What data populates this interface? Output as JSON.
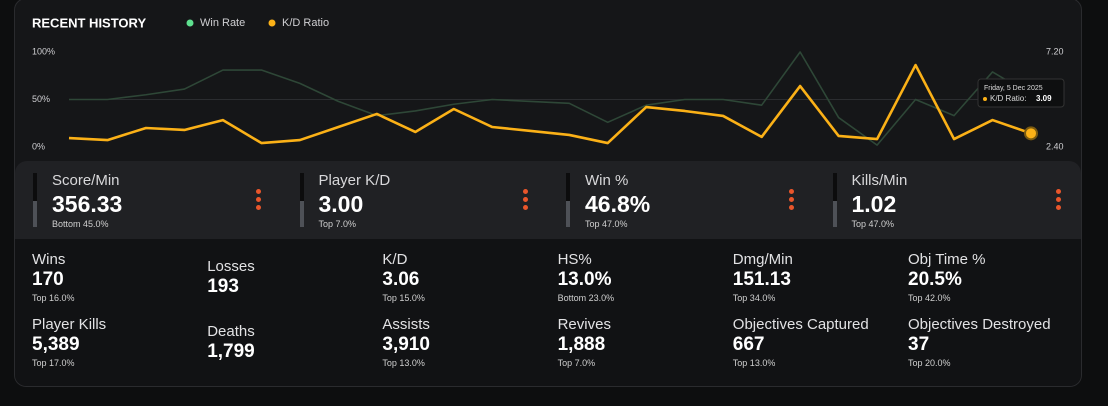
{
  "chart_data": {
    "type": "line",
    "title": "RECENT HISTORY",
    "categories": [
      null,
      null,
      null,
      null,
      null,
      null,
      null,
      null,
      null,
      null,
      null,
      null,
      null,
      null,
      null,
      null,
      null,
      null,
      null,
      null,
      null,
      null,
      null,
      null,
      null,
      null
    ],
    "series": [
      {
        "name": "Win Rate",
        "color": "#5ee08f",
        "line_color": "#2e4737",
        "axis": "y",
        "values": [
          50,
          50,
          55,
          61,
          81,
          81,
          67,
          48,
          33,
          38,
          45,
          50,
          48,
          46,
          26,
          44,
          50,
          50,
          44,
          100,
          31,
          2,
          50,
          33,
          79,
          55
        ]
      },
      {
        "name": "K/D Ratio",
        "color": "#fbb117",
        "line_color": "#fbb117",
        "axis": "y2",
        "values": [
          2.85,
          2.75,
          3.36,
          3.26,
          3.76,
          2.6,
          2.75,
          3.41,
          4.07,
          3.16,
          4.32,
          3.41,
          3.21,
          3.01,
          2.6,
          4.42,
          4.22,
          3.97,
          2.91,
          5.48,
          2.96,
          2.8,
          6.54,
          2.8,
          3.76,
          3.09
        ]
      }
    ],
    "ylim": [
      0,
      100
    ],
    "yticks": [
      {
        "value": 0,
        "label": "0%"
      },
      {
        "value": 50,
        "label": "50%"
      },
      {
        "value": 100,
        "label": "100%"
      }
    ],
    "y2lim": [
      2.4,
      7.2
    ],
    "y2ticks": [
      {
        "value": 2.4,
        "label": "2.40"
      },
      {
        "value": 7.2,
        "label": "7.20"
      }
    ],
    "grid": true,
    "tooltip": {
      "index": 25,
      "series": 1,
      "title": "Friday, 5 Dec 2025",
      "label": "K/D Ratio:"
    }
  },
  "stat_cards": [
    {
      "label": "Score/Min",
      "value": "356.33",
      "rank": "Bottom 45.0%"
    },
    {
      "label": "Player K/D",
      "value": "3.00",
      "rank": "Top 7.0%"
    },
    {
      "label": "Win %",
      "value": "46.8%",
      "rank": "Top 47.0%"
    },
    {
      "label": "Kills/Min",
      "value": "1.02",
      "rank": "Top 47.0%"
    }
  ],
  "stats": [
    {
      "label": "Wins",
      "value": "170",
      "rank": "Top 16.0%"
    },
    {
      "label": "Losses",
      "value": "193"
    },
    {
      "label": "K/D",
      "value": "3.06",
      "rank": "Top 15.0%"
    },
    {
      "label": "HS%",
      "value": "13.0%",
      "rank": "Bottom 23.0%"
    },
    {
      "label": "Dmg/Min",
      "value": "151.13",
      "rank": "Top 34.0%"
    },
    {
      "label": "Obj Time %",
      "value": "20.5%",
      "rank": "Top 42.0%"
    },
    {
      "label": "Player Kills",
      "value": "5,389",
      "rank": "Top 17.0%"
    },
    {
      "label": "Deaths",
      "value": "1,799"
    },
    {
      "label": "Assists",
      "value": "3,910",
      "rank": "Top 13.0%"
    },
    {
      "label": "Revives",
      "value": "1,888",
      "rank": "Top 7.0%"
    },
    {
      "label": "Objectives Captured",
      "value": "667",
      "rank": "Top 13.0%"
    },
    {
      "label": "Objectives Destroyed",
      "value": "37",
      "rank": "Top 20.0%"
    }
  ]
}
